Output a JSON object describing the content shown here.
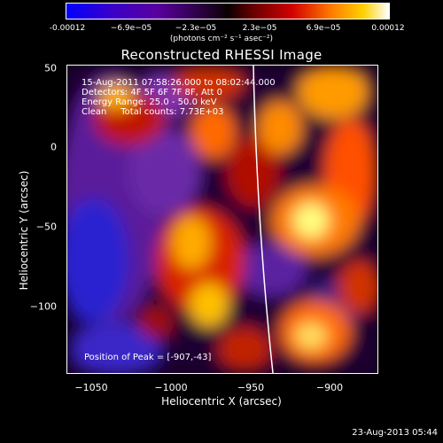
{
  "colorbar": {
    "ticks": [
      "-0.00012",
      "−6.9e−05",
      "−2.3e−05",
      "2.3e−05",
      "6.9e−05",
      "0.00012"
    ],
    "unit": "(photons cm⁻² s⁻¹ asec⁻²)"
  },
  "title": "Reconstructed RHESSI Image",
  "info": {
    "time": "15-Aug-2011 07:58:26.000 to 08:02:44.000",
    "detectors": "Detectors: 4F 5F 6F 7F 8F, Att 0",
    "energy": "Energy Range: 25.0 - 50.0 keV",
    "clean": "Clean     Total counts: 7.73E+03",
    "peak": "Position of Peak = [-907,-43]"
  },
  "axes": {
    "xlabel": "Heliocentric X (arcsec)",
    "ylabel": "Heliocentric Y (arcsec)",
    "xticks": [
      "−1050",
      "−1000",
      "−950",
      "−900"
    ],
    "yticks": [
      "50",
      "0",
      "−50",
      "−100"
    ],
    "xlim": [
      -1062,
      -867
    ],
    "ylim": [
      -143,
      52
    ]
  },
  "timestamp": "23-Aug-2013 05:44",
  "colors": {
    "background": "#000000",
    "limb": "#ffffff"
  }
}
